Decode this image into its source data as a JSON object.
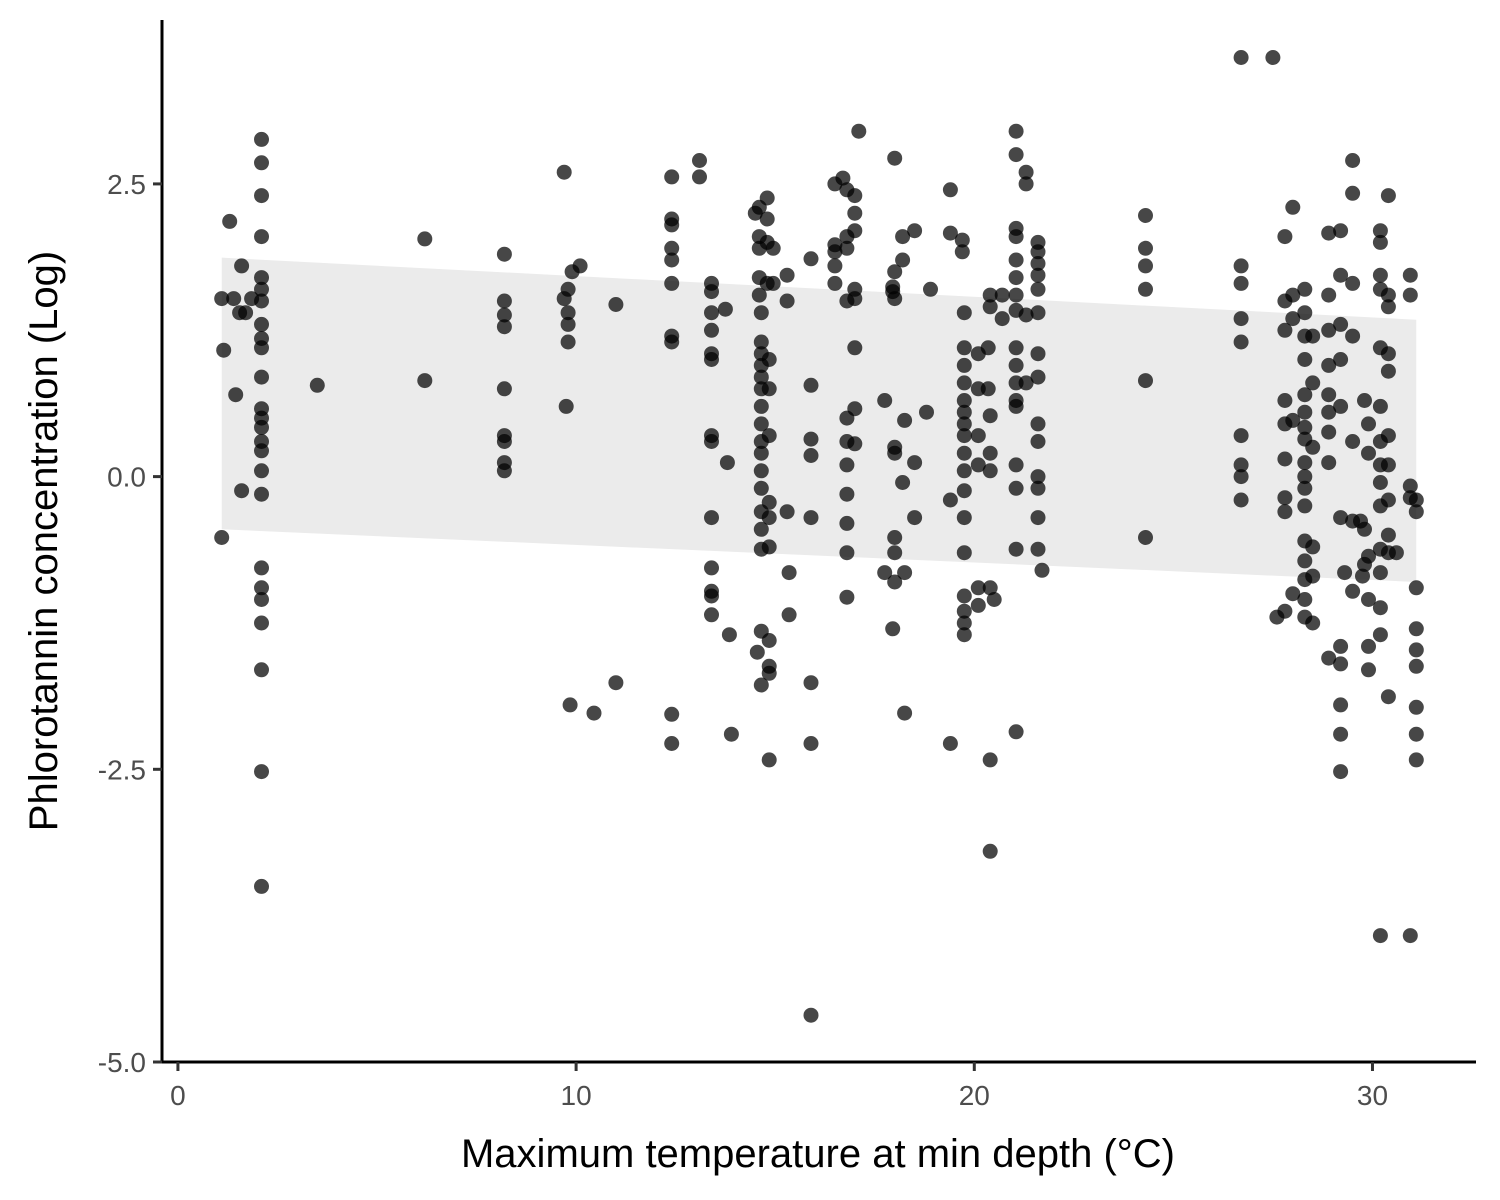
{
  "chart_data": {
    "type": "scatter",
    "xlabel": "Maximum temperature at min depth (°C)",
    "ylabel": "Phlorotannin concentration (Log)",
    "xlim": [
      -0.4,
      32.6
    ],
    "ylim": [
      -5.0,
      3.9
    ],
    "x_ticks": [
      0,
      10,
      20,
      30
    ],
    "x_tick_labels": [
      "0",
      "10",
      "20",
      "30"
    ],
    "y_ticks": [
      -5.0,
      -2.5,
      0.0,
      2.5
    ],
    "y_tick_labels": [
      "-5.0",
      "-2.5",
      "0.0",
      "2.5"
    ],
    "grid": false,
    "colors": {
      "points": "#000000",
      "ribbon": "#ebebeb",
      "axis": "#000000"
    },
    "ribbon": {
      "x": [
        1.1,
        31.1
      ],
      "upper": [
        1.87,
        1.34
      ],
      "lower": [
        -0.45,
        -0.9
      ]
    },
    "points": [
      [
        1.1,
        1.52
      ],
      [
        1.15,
        1.08
      ],
      [
        1.1,
        -0.52
      ],
      [
        1.3,
        2.18
      ],
      [
        1.4,
        1.52
      ],
      [
        1.45,
        0.7
      ],
      [
        1.55,
        1.4
      ],
      [
        1.7,
        1.4
      ],
      [
        1.6,
        1.8
      ],
      [
        1.6,
        -0.12
      ],
      [
        1.85,
        1.52
      ],
      [
        2.1,
        2.88
      ],
      [
        2.1,
        2.68
      ],
      [
        2.1,
        2.4
      ],
      [
        2.1,
        2.05
      ],
      [
        2.1,
        1.7
      ],
      [
        2.1,
        1.6
      ],
      [
        2.1,
        1.5
      ],
      [
        2.1,
        1.3
      ],
      [
        2.1,
        1.18
      ],
      [
        2.1,
        1.1
      ],
      [
        2.1,
        0.85
      ],
      [
        2.1,
        0.58
      ],
      [
        2.1,
        0.5
      ],
      [
        2.1,
        0.42
      ],
      [
        2.1,
        0.3
      ],
      [
        2.1,
        0.22
      ],
      [
        2.1,
        0.05
      ],
      [
        2.1,
        -0.15
      ],
      [
        2.1,
        -0.78
      ],
      [
        2.1,
        -0.95
      ],
      [
        2.1,
        -1.05
      ],
      [
        2.1,
        -1.25
      ],
      [
        2.1,
        -1.65
      ],
      [
        2.1,
        -2.52
      ],
      [
        2.1,
        -3.5
      ],
      [
        3.5,
        0.78
      ],
      [
        6.2,
        2.03
      ],
      [
        6.2,
        0.82
      ],
      [
        8.2,
        1.9
      ],
      [
        8.2,
        1.5
      ],
      [
        8.2,
        1.38
      ],
      [
        8.2,
        1.28
      ],
      [
        8.2,
        0.75
      ],
      [
        8.2,
        0.35
      ],
      [
        8.2,
        0.3
      ],
      [
        8.2,
        0.12
      ],
      [
        8.2,
        0.05
      ],
      [
        9.7,
        2.6
      ],
      [
        9.7,
        1.52
      ],
      [
        9.75,
        0.6
      ],
      [
        9.8,
        1.6
      ],
      [
        9.8,
        1.4
      ],
      [
        9.8,
        1.3
      ],
      [
        9.8,
        1.15
      ],
      [
        9.9,
        1.75
      ],
      [
        9.85,
        -1.95
      ],
      [
        10.1,
        1.8
      ],
      [
        10.45,
        -2.02
      ],
      [
        11,
        1.47
      ],
      [
        11,
        -1.76
      ],
      [
        12.4,
        2.56
      ],
      [
        12.4,
        2.2
      ],
      [
        12.4,
        2.15
      ],
      [
        12.4,
        1.95
      ],
      [
        12.4,
        1.85
      ],
      [
        12.4,
        1.65
      ],
      [
        12.4,
        1.2
      ],
      [
        12.4,
        1.15
      ],
      [
        12.4,
        -2.03
      ],
      [
        12.4,
        -2.28
      ],
      [
        13.1,
        2.7
      ],
      [
        13.1,
        2.56
      ],
      [
        13.4,
        1.65
      ],
      [
        13.4,
        1.58
      ],
      [
        13.4,
        1.4
      ],
      [
        13.4,
        1.25
      ],
      [
        13.4,
        1.05
      ],
      [
        13.4,
        1.0
      ],
      [
        13.4,
        0.35
      ],
      [
        13.4,
        0.3
      ],
      [
        13.4,
        -0.35
      ],
      [
        13.4,
        -0.78
      ],
      [
        13.4,
        -0.98
      ],
      [
        13.4,
        -1.02
      ],
      [
        13.4,
        -1.18
      ],
      [
        13.75,
        1.43
      ],
      [
        13.8,
        0.12
      ],
      [
        13.85,
        -1.35
      ],
      [
        13.9,
        -2.2
      ],
      [
        14.5,
        2.25
      ],
      [
        14.6,
        2.3
      ],
      [
        14.6,
        2.05
      ],
      [
        14.6,
        1.95
      ],
      [
        14.6,
        1.7
      ],
      [
        14.6,
        1.55
      ],
      [
        14.65,
        1.4
      ],
      [
        14.65,
        1.15
      ],
      [
        14.65,
        1.05
      ],
      [
        14.65,
        0.95
      ],
      [
        14.65,
        0.85
      ],
      [
        14.65,
        0.75
      ],
      [
        14.65,
        0.6
      ],
      [
        14.65,
        0.45
      ],
      [
        14.65,
        0.3
      ],
      [
        14.65,
        0.2
      ],
      [
        14.65,
        0.05
      ],
      [
        14.65,
        -0.1
      ],
      [
        14.65,
        -0.3
      ],
      [
        14.65,
        -0.45
      ],
      [
        14.65,
        -0.62
      ],
      [
        14.65,
        -1.32
      ],
      [
        14.55,
        -1.5
      ],
      [
        14.65,
        -1.78
      ],
      [
        14.8,
        2.38
      ],
      [
        14.8,
        2.2
      ],
      [
        14.8,
        2.0
      ],
      [
        14.8,
        1.65
      ],
      [
        14.85,
        1.0
      ],
      [
        14.85,
        0.75
      ],
      [
        14.85,
        0.35
      ],
      [
        14.85,
        -0.22
      ],
      [
        14.85,
        -0.35
      ],
      [
        14.85,
        -0.6
      ],
      [
        14.85,
        -1.4
      ],
      [
        14.85,
        -1.62
      ],
      [
        14.85,
        -1.68
      ],
      [
        14.85,
        -2.42
      ],
      [
        14.95,
        1.95
      ],
      [
        14.95,
        1.65
      ],
      [
        15.3,
        1.72
      ],
      [
        15.3,
        1.5
      ],
      [
        15.3,
        -0.3
      ],
      [
        15.35,
        -0.82
      ],
      [
        15.35,
        -1.18
      ],
      [
        15.9,
        1.86
      ],
      [
        15.9,
        0.78
      ],
      [
        15.9,
        0.32
      ],
      [
        15.9,
        0.18
      ],
      [
        15.9,
        -0.35
      ],
      [
        15.9,
        -1.76
      ],
      [
        15.9,
        -2.28
      ],
      [
        15.9,
        -4.6
      ],
      [
        16.5,
        2.5
      ],
      [
        16.5,
        1.98
      ],
      [
        16.5,
        1.92
      ],
      [
        16.5,
        1.8
      ],
      [
        16.5,
        1.65
      ],
      [
        16.7,
        2.55
      ],
      [
        16.8,
        2.45
      ],
      [
        16.8,
        2.05
      ],
      [
        16.8,
        1.95
      ],
      [
        16.8,
        1.5
      ],
      [
        16.8,
        0.5
      ],
      [
        16.8,
        0.3
      ],
      [
        16.8,
        0.1
      ],
      [
        16.8,
        -0.15
      ],
      [
        16.8,
        -0.4
      ],
      [
        16.8,
        -0.65
      ],
      [
        16.8,
        -1.03
      ],
      [
        17.0,
        2.4
      ],
      [
        17.0,
        2.25
      ],
      [
        17.0,
        2.1
      ],
      [
        17.0,
        1.6
      ],
      [
        17.0,
        1.52
      ],
      [
        17.0,
        1.1
      ],
      [
        17.0,
        0.58
      ],
      [
        17.0,
        0.28
      ],
      [
        17.1,
        2.95
      ],
      [
        17.75,
        0.65
      ],
      [
        17.75,
        -0.82
      ],
      [
        17.95,
        1.62
      ],
      [
        17.95,
        1.58
      ],
      [
        17.95,
        -1.3
      ],
      [
        18.0,
        2.72
      ],
      [
        18.0,
        1.75
      ],
      [
        18.0,
        1.52
      ],
      [
        18.0,
        0.25
      ],
      [
        18.0,
        0.2
      ],
      [
        18.0,
        -0.52
      ],
      [
        18.0,
        -0.65
      ],
      [
        18.0,
        -0.9
      ],
      [
        18.2,
        1.85
      ],
      [
        18.2,
        2.05
      ],
      [
        18.2,
        -0.05
      ],
      [
        18.25,
        -0.82
      ],
      [
        18.25,
        0.48
      ],
      [
        18.25,
        -2.02
      ],
      [
        18.5,
        2.1
      ],
      [
        18.5,
        0.12
      ],
      [
        18.5,
        -0.35
      ],
      [
        18.8,
        0.55
      ],
      [
        18.9,
        1.6
      ],
      [
        19.4,
        2.45
      ],
      [
        19.4,
        2.08
      ],
      [
        19.4,
        -0.2
      ],
      [
        19.4,
        -2.28
      ],
      [
        19.7,
        2.02
      ],
      [
        19.7,
        1.92
      ],
      [
        19.75,
        1.4
      ],
      [
        19.75,
        1.1
      ],
      [
        19.75,
        0.95
      ],
      [
        19.75,
        0.8
      ],
      [
        19.75,
        0.65
      ],
      [
        19.75,
        0.55
      ],
      [
        19.75,
        0.45
      ],
      [
        19.75,
        0.35
      ],
      [
        19.75,
        0.2
      ],
      [
        19.75,
        0.05
      ],
      [
        19.75,
        -0.12
      ],
      [
        19.75,
        -0.35
      ],
      [
        19.75,
        -0.65
      ],
      [
        19.75,
        -1.02
      ],
      [
        19.75,
        -1.15
      ],
      [
        19.75,
        -1.25
      ],
      [
        19.75,
        -1.35
      ],
      [
        20.1,
        1.05
      ],
      [
        20.1,
        0.75
      ],
      [
        20.1,
        0.35
      ],
      [
        20.1,
        0.1
      ],
      [
        20.1,
        -0.95
      ],
      [
        20.1,
        -1.1
      ],
      [
        20.35,
        1.1
      ],
      [
        20.35,
        0.75
      ],
      [
        20.4,
        1.55
      ],
      [
        20.4,
        1.45
      ],
      [
        20.4,
        0.52
      ],
      [
        20.4,
        0.2
      ],
      [
        20.4,
        0.05
      ],
      [
        20.4,
        -0.95
      ],
      [
        20.4,
        -2.42
      ],
      [
        20.4,
        -3.2
      ],
      [
        20.5,
        -1.05
      ],
      [
        20.7,
        1.55
      ],
      [
        20.7,
        1.35
      ],
      [
        21.05,
        2.95
      ],
      [
        21.05,
        2.75
      ],
      [
        21.05,
        2.12
      ],
      [
        21.05,
        2.05
      ],
      [
        21.05,
        1.85
      ],
      [
        21.05,
        1.7
      ],
      [
        21.05,
        1.55
      ],
      [
        21.05,
        1.42
      ],
      [
        21.05,
        1.1
      ],
      [
        21.05,
        0.95
      ],
      [
        21.05,
        0.8
      ],
      [
        21.05,
        0.65
      ],
      [
        21.05,
        0.6
      ],
      [
        21.05,
        0.1
      ],
      [
        21.05,
        -0.1
      ],
      [
        21.05,
        -0.62
      ],
      [
        21.05,
        -2.18
      ],
      [
        21.3,
        2.6
      ],
      [
        21.3,
        2.5
      ],
      [
        21.3,
        1.38
      ],
      [
        21.3,
        0.8
      ],
      [
        21.6,
        2.0
      ],
      [
        21.6,
        1.92
      ],
      [
        21.6,
        1.82
      ],
      [
        21.6,
        1.72
      ],
      [
        21.6,
        1.6
      ],
      [
        21.6,
        1.4
      ],
      [
        21.6,
        1.05
      ],
      [
        21.6,
        0.85
      ],
      [
        21.6,
        0.45
      ],
      [
        21.6,
        0.3
      ],
      [
        21.6,
        0.0
      ],
      [
        21.6,
        -0.1
      ],
      [
        21.6,
        -0.35
      ],
      [
        21.6,
        -0.62
      ],
      [
        21.7,
        -0.8
      ],
      [
        24.3,
        2.23
      ],
      [
        24.3,
        1.95
      ],
      [
        24.3,
        1.8
      ],
      [
        24.3,
        1.6
      ],
      [
        24.3,
        0.82
      ],
      [
        24.3,
        -0.52
      ],
      [
        26.7,
        3.58
      ],
      [
        26.7,
        1.8
      ],
      [
        26.7,
        1.65
      ],
      [
        26.7,
        1.35
      ],
      [
        26.7,
        1.15
      ],
      [
        26.7,
        0.35
      ],
      [
        26.7,
        0.1
      ],
      [
        26.7,
        0.0
      ],
      [
        26.7,
        -0.2
      ],
      [
        27.5,
        3.58
      ],
      [
        27.8,
        2.05
      ],
      [
        27.8,
        1.5
      ],
      [
        27.8,
        1.25
      ],
      [
        27.8,
        0.65
      ],
      [
        27.8,
        0.45
      ],
      [
        27.8,
        0.15
      ],
      [
        27.8,
        -0.18
      ],
      [
        27.8,
        -0.3
      ],
      [
        27.8,
        -1.15
      ],
      [
        27.6,
        -1.2
      ],
      [
        28.0,
        2.3
      ],
      [
        28.0,
        1.55
      ],
      [
        28.0,
        1.35
      ],
      [
        28.0,
        0.48
      ],
      [
        28.0,
        -1.0
      ],
      [
        28.3,
        1.6
      ],
      [
        28.3,
        1.4
      ],
      [
        28.3,
        1.2
      ],
      [
        28.3,
        1.0
      ],
      [
        28.3,
        0.7
      ],
      [
        28.3,
        0.55
      ],
      [
        28.3,
        0.42
      ],
      [
        28.3,
        0.32
      ],
      [
        28.3,
        0.12
      ],
      [
        28.3,
        0.0
      ],
      [
        28.3,
        -0.1
      ],
      [
        28.3,
        -0.25
      ],
      [
        28.3,
        -0.55
      ],
      [
        28.3,
        -0.72
      ],
      [
        28.3,
        -0.88
      ],
      [
        28.3,
        -1.05
      ],
      [
        28.3,
        -1.2
      ],
      [
        28.5,
        1.2
      ],
      [
        28.5,
        0.8
      ],
      [
        28.5,
        0.25
      ],
      [
        28.5,
        -0.6
      ],
      [
        28.5,
        -0.85
      ],
      [
        28.5,
        -1.25
      ],
      [
        28.9,
        2.08
      ],
      [
        28.9,
        1.55
      ],
      [
        28.9,
        1.25
      ],
      [
        28.9,
        0.95
      ],
      [
        28.9,
        0.7
      ],
      [
        28.9,
        0.55
      ],
      [
        28.9,
        0.38
      ],
      [
        28.9,
        0.12
      ],
      [
        28.9,
        -1.55
      ],
      [
        29.2,
        2.1
      ],
      [
        29.2,
        1.72
      ],
      [
        29.2,
        1.3
      ],
      [
        29.2,
        1.0
      ],
      [
        29.2,
        0.6
      ],
      [
        29.2,
        -0.35
      ],
      [
        29.2,
        -1.45
      ],
      [
        29.2,
        -1.6
      ],
      [
        29.2,
        -1.95
      ],
      [
        29.2,
        -2.2
      ],
      [
        29.2,
        -2.52
      ],
      [
        29.3,
        -0.82
      ],
      [
        29.5,
        2.7
      ],
      [
        29.5,
        2.42
      ],
      [
        29.5,
        1.65
      ],
      [
        29.5,
        1.2
      ],
      [
        29.5,
        0.3
      ],
      [
        29.5,
        -0.38
      ],
      [
        29.5,
        -0.98
      ],
      [
        29.7,
        -0.38
      ],
      [
        29.75,
        -0.85
      ],
      [
        29.8,
        0.65
      ],
      [
        29.8,
        -0.45
      ],
      [
        29.8,
        -0.75
      ],
      [
        29.9,
        0.45
      ],
      [
        29.9,
        0.2
      ],
      [
        29.9,
        -0.68
      ],
      [
        29.9,
        -1.05
      ],
      [
        29.9,
        -1.45
      ],
      [
        29.9,
        -1.65
      ],
      [
        30.2,
        2.1
      ],
      [
        30.2,
        2.0
      ],
      [
        30.2,
        1.72
      ],
      [
        30.2,
        1.6
      ],
      [
        30.2,
        1.1
      ],
      [
        30.2,
        0.6
      ],
      [
        30.2,
        0.3
      ],
      [
        30.2,
        0.1
      ],
      [
        30.2,
        -0.05
      ],
      [
        30.2,
        -0.25
      ],
      [
        30.2,
        -0.62
      ],
      [
        30.2,
        -0.82
      ],
      [
        30.2,
        -1.12
      ],
      [
        30.2,
        -1.35
      ],
      [
        30.2,
        -3.92
      ],
      [
        30.4,
        2.4
      ],
      [
        30.4,
        1.55
      ],
      [
        30.4,
        1.45
      ],
      [
        30.4,
        1.05
      ],
      [
        30.4,
        0.9
      ],
      [
        30.4,
        0.35
      ],
      [
        30.4,
        0.1
      ],
      [
        30.4,
        -0.2
      ],
      [
        30.4,
        -0.5
      ],
      [
        30.4,
        -0.65
      ],
      [
        30.4,
        -1.88
      ],
      [
        30.6,
        -0.65
      ],
      [
        30.95,
        1.72
      ],
      [
        30.95,
        1.55
      ],
      [
        30.95,
        -0.08
      ],
      [
        30.95,
        -0.18
      ],
      [
        30.95,
        -3.92
      ],
      [
        31.1,
        -0.2
      ],
      [
        31.1,
        -0.3
      ],
      [
        31.1,
        -0.95
      ],
      [
        31.1,
        -1.3
      ],
      [
        31.1,
        -1.48
      ],
      [
        31.1,
        -1.62
      ],
      [
        31.1,
        -1.97
      ],
      [
        31.1,
        -2.2
      ],
      [
        31.1,
        -2.42
      ]
    ]
  }
}
